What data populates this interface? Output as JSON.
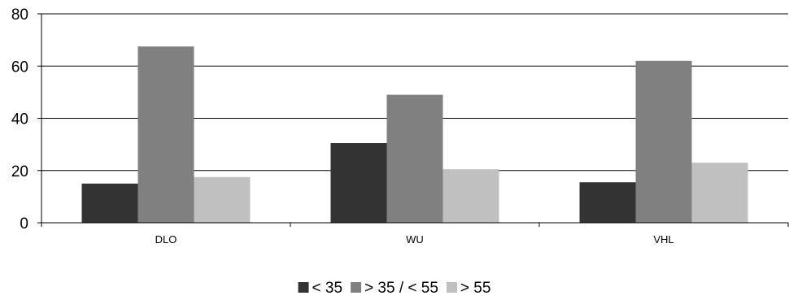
{
  "chart_data": {
    "type": "bar",
    "categories": [
      "DLO",
      "WU",
      "VHL"
    ],
    "series": [
      {
        "name": "< 35",
        "values": [
          15,
          30.5,
          15.5
        ],
        "color": "#333333"
      },
      {
        "name": "> 35 / < 55",
        "values": [
          67.5,
          49,
          62
        ],
        "color": "#808080"
      },
      {
        "name": "> 55",
        "values": [
          17.5,
          20.5,
          23
        ],
        "color": "#c0c0c0"
      }
    ],
    "ylim": [
      0,
      80
    ],
    "yticks": [
      0,
      20,
      40,
      60,
      80
    ],
    "grid": true,
    "legend_position": "bottom"
  }
}
